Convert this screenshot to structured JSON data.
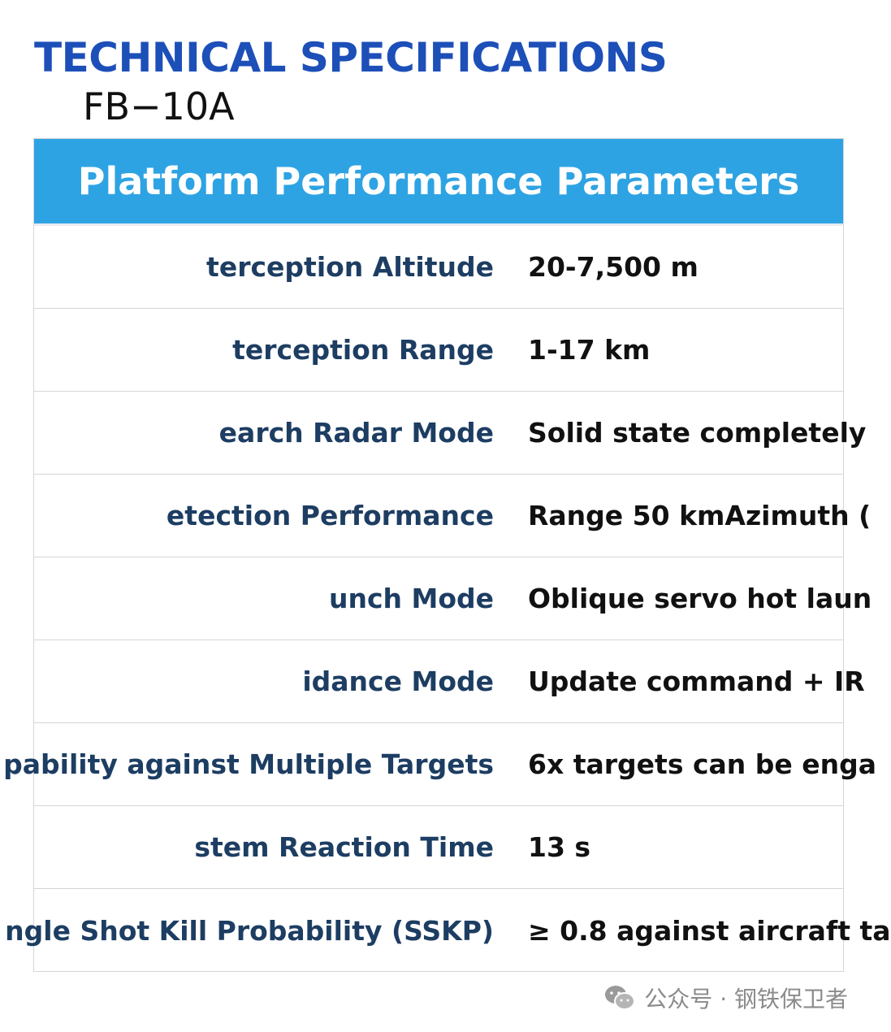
{
  "header": {
    "title": "TECHNICAL SPECIFICATIONS",
    "subtitle": "FB−10A"
  },
  "table": {
    "heading": "Platform Performance Parameters",
    "rows": [
      {
        "label": "terception Altitude",
        "value": "20-7,500 m"
      },
      {
        "label": "terception Range",
        "value": "1-17 km"
      },
      {
        "label": "earch Radar Mode",
        "value": "Solid state completely"
      },
      {
        "label": "etection Performance",
        "value": "Range 50 kmAzimuth ("
      },
      {
        "label": "unch Mode",
        "value": "Oblique servo hot laun"
      },
      {
        "label": "idance Mode",
        "value": "Update command + IR"
      },
      {
        "label": "pability against Multiple Targets",
        "value": "6x targets can be enga"
      },
      {
        "label": "stem Reaction Time",
        "value": "13 s"
      },
      {
        "label": "ngle Shot Kill Probability (SSKP)",
        "value": "≥ 0.8 against aircraft ta"
      }
    ]
  },
  "watermark": {
    "text": "公众号 · 钢铁保卫者",
    "icon": "wechat-icon"
  },
  "colors": {
    "title": "#1d4fb8",
    "header_bg": "#2ea3e3",
    "label": "#1d3d62",
    "value": "#111111"
  }
}
